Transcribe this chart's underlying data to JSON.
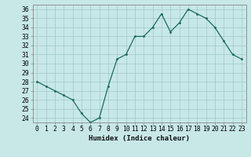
{
  "x": [
    0,
    1,
    2,
    3,
    4,
    5,
    6,
    7,
    8,
    9,
    10,
    11,
    12,
    13,
    14,
    15,
    16,
    17,
    18,
    19,
    20,
    21,
    22,
    23
  ],
  "y": [
    28,
    27.5,
    27,
    26.5,
    26,
    24.5,
    23.5,
    24,
    27.5,
    30.5,
    31,
    33,
    33,
    34,
    35.5,
    33.5,
    34.5,
    36,
    35.5,
    35,
    34,
    32.5,
    31,
    30.5
  ],
  "line_color": "#1a6b5a",
  "marker_color": "#1a6b5a",
  "bg_color": "#c8e8e8",
  "grid_color": "#9fc8c8",
  "xlabel": "Humidex (Indice chaleur)",
  "xlim": [
    -0.5,
    23.5
  ],
  "ylim": [
    23.5,
    36.5
  ],
  "yticks": [
    24,
    25,
    26,
    27,
    28,
    29,
    30,
    31,
    32,
    33,
    34,
    35,
    36
  ],
  "xticks": [
    0,
    1,
    2,
    3,
    4,
    5,
    6,
    7,
    8,
    9,
    10,
    11,
    12,
    13,
    14,
    15,
    16,
    17,
    18,
    19,
    20,
    21,
    22,
    23
  ],
  "xlabel_fontsize": 6.5,
  "tick_fontsize": 5.8
}
